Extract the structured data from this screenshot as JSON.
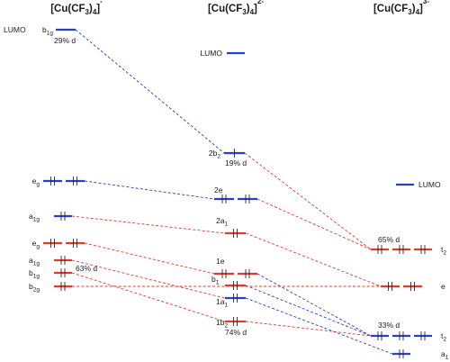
{
  "colors": {
    "red": "#e03a2e",
    "blue": "#2a3fc8",
    "electron": "#2b2b2b"
  },
  "columns": [
    {
      "formula": "Cu(CF",
      "sub": "3",
      "mid": ")",
      "sub2": "4",
      "charge": "-"
    },
    {
      "formula": "Cu(CF",
      "sub": "3",
      "mid": ")",
      "sub2": "4",
      "charge": "2-"
    },
    {
      "formula": "Cu(CF",
      "sub": "3",
      "mid": ")",
      "sub2": "4",
      "charge": "3-"
    }
  ],
  "levels": {
    "L_b1g": {
      "label": "b",
      "sub": "1g",
      "prefix": "LUMO",
      "color": "blue",
      "electrons": 0,
      "note": "29% d"
    },
    "L_eg1": {
      "label": "e",
      "sub": "g",
      "color": "blue",
      "electrons": 4
    },
    "L_a1g1": {
      "label": "a",
      "sub": "1g",
      "color": "blue",
      "electrons": 2
    },
    "L_eg2": {
      "label": "e",
      "sub": "g",
      "color": "red",
      "electrons": 4
    },
    "L_a1g2": {
      "label": "a",
      "sub": "1g",
      "color": "red",
      "electrons": 2
    },
    "L_b1g2": {
      "label": "b",
      "sub": "1g",
      "color": "red",
      "electrons": 2,
      "note": "63% d"
    },
    "L_b2g": {
      "label": "b",
      "sub": "2g",
      "color": "red",
      "electrons": 2
    },
    "M_lumo": {
      "label": "LUMO",
      "color": "blue",
      "electrons": 0
    },
    "M_2b2": {
      "label": "2b",
      "sub": "2",
      "color": "blue",
      "electrons": 1,
      "note": "19% d"
    },
    "M_2e": {
      "label": "2e",
      "color": "blue",
      "electrons": 4
    },
    "M_2a1": {
      "label": "2a",
      "sub": "1",
      "color": "red",
      "electrons": 2
    },
    "M_1e": {
      "label": "1e",
      "color": "red",
      "electrons": 4
    },
    "M_b1": {
      "label": "b",
      "sub": "1",
      "color": "red",
      "electrons": 2
    },
    "M_1a1": {
      "label": "1a",
      "sub": "1",
      "color": "blue",
      "electrons": 2
    },
    "M_1b2": {
      "label": "1b",
      "sub": "2",
      "color": "red",
      "electrons": 2,
      "note": "74% d"
    },
    "R_lumo": {
      "label": "LUMO",
      "color": "blue",
      "electrons": 0
    },
    "R_t2a": {
      "label": "t",
      "sub": "2",
      "color": "red",
      "electrons": 6,
      "note": "65% d"
    },
    "R_e": {
      "label": "e",
      "color": "red",
      "electrons": 4
    },
    "R_t2b": {
      "label": "t",
      "sub": "2",
      "color": "blue",
      "electrons": 6,
      "note": "33% d"
    },
    "R_a1": {
      "label": "a",
      "sub": "1",
      "color": "blue",
      "electrons": 2
    }
  },
  "correlations": [
    {
      "from": "L_b1g",
      "to": "M_2b2",
      "color": "blue"
    },
    {
      "from": "L_eg1",
      "to": "M_2e",
      "color": "blue"
    },
    {
      "from": "L_a1g1",
      "to": "M_2a1",
      "color": "red"
    },
    {
      "from": "L_eg2",
      "to": "M_1e",
      "color": "red"
    },
    {
      "from": "L_a1g2",
      "to": "M_1a1",
      "color": "red"
    },
    {
      "from": "L_b1g2",
      "to": "M_1b2",
      "color": "red"
    },
    {
      "from": "L_b2g",
      "to": "R_e",
      "color": "red"
    },
    {
      "from": "M_2b2",
      "to": "R_t2a",
      "color": "red"
    },
    {
      "from": "M_2e",
      "to": "R_t2a",
      "color": "red"
    },
    {
      "from": "M_2a1",
      "to": "R_e",
      "color": "red"
    },
    {
      "from": "M_1e",
      "to": "R_t2b",
      "color": "blue"
    },
    {
      "from": "M_b1",
      "to": "R_t2b",
      "color": "blue"
    },
    {
      "from": "M_1a1",
      "to": "R_a1",
      "color": "blue"
    },
    {
      "from": "M_1b2",
      "to": "R_t2b",
      "color": "red"
    }
  ]
}
